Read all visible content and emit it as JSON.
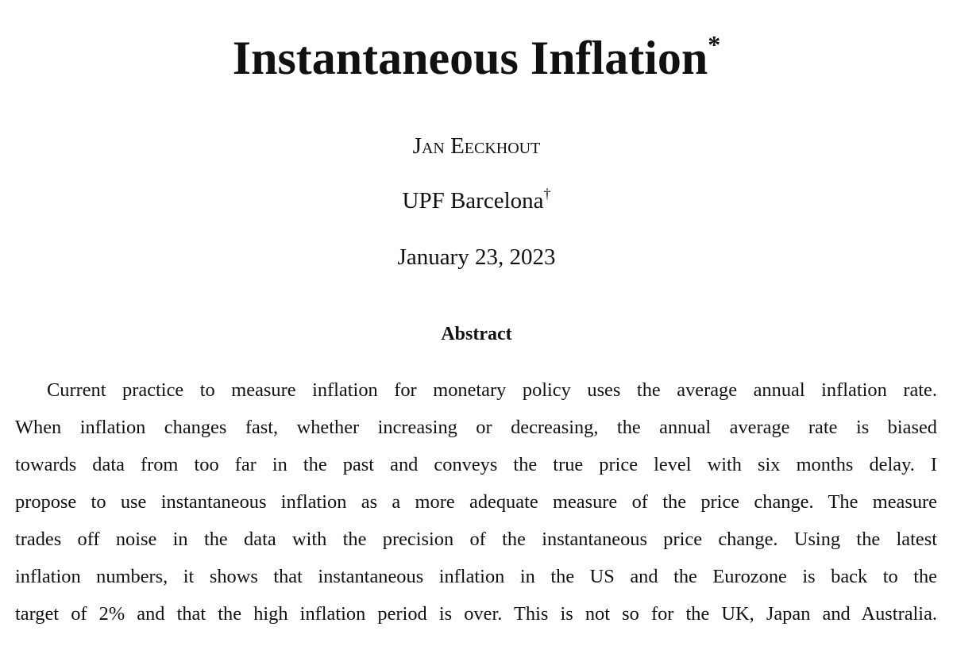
{
  "title": {
    "text": "Instantaneous Inflation",
    "mark": "*"
  },
  "author": "Jan Eeckhout",
  "affiliation": {
    "text": "UPF Barcelona",
    "mark": "†"
  },
  "date": "January 23, 2023",
  "abstract": {
    "heading": "Abstract",
    "lines": [
      "Current practice to measure inflation for monetary policy uses the average annual inflation rate.",
      "When inflation changes fast, whether increasing or decreasing, the annual average rate is biased",
      "towards data from too far in the past and conveys the true price level with six months delay.  I",
      "propose to use instantaneous inflation as a more adequate measure of the price change. The measure",
      "trades off noise in the data with the precision of the instantaneous price change.  Using the latest",
      "inflation numbers, it shows that instantaneous inflation in the US and the Eurozone is back to the",
      "target of 2% and that the high inflation period is over. This is not so for the UK, Japan and Australia."
    ]
  }
}
